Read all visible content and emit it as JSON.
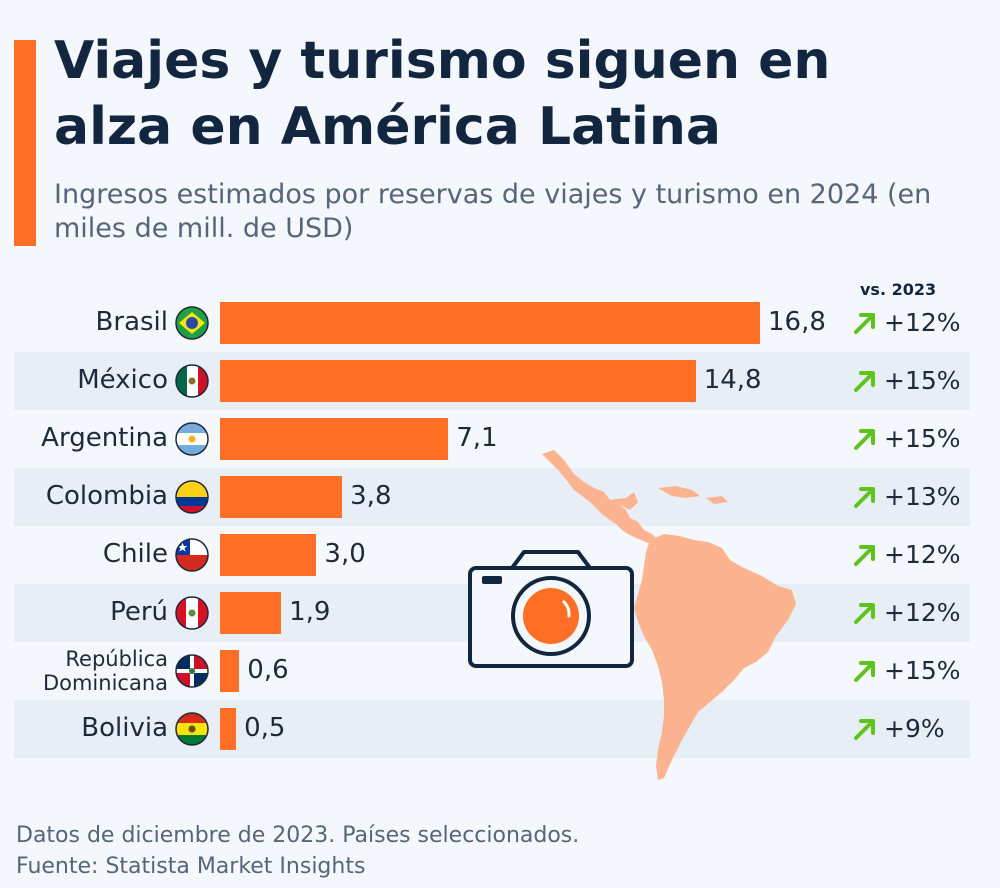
{
  "header": {
    "title": "Viajes y turismo siguen en alza en América Latina",
    "subtitle": "Ingresos estimados por reservas de viajes y turismo en 2024 (en miles de mill. de USD)"
  },
  "comparison_label": "vs. 2023",
  "colors": {
    "bar": "#ff6f26",
    "accent": "#ff6f26",
    "arrow": "#5fc31e",
    "title": "#12263f"
  },
  "chart_data": {
    "type": "bar",
    "orientation": "horizontal",
    "title": "Viajes y turismo siguen en alza en América Latina",
    "subtitle": "Ingresos estimados por reservas de viajes y turismo en 2024 (en miles de mill. de USD)",
    "xlim": [
      0,
      16.8
    ],
    "grid": false,
    "legend": "none",
    "categories": [
      "Brasil",
      "México",
      "Argentina",
      "Colombia",
      "Chile",
      "Perú",
      "República Dominicana",
      "Bolivia"
    ],
    "category_lines": [
      [
        "Brasil"
      ],
      [
        "México"
      ],
      [
        "Argentina"
      ],
      [
        "Colombia"
      ],
      [
        "Chile"
      ],
      [
        "Perú"
      ],
      [
        "República",
        "Dominicana"
      ],
      [
        "Bolivia"
      ]
    ],
    "values": [
      16.8,
      14.8,
      7.1,
      3.8,
      3.0,
      1.9,
      0.6,
      0.5
    ],
    "value_labels": [
      "16,8",
      "14,8",
      "7,1",
      "3,8",
      "3,0",
      "1,9",
      "0,6",
      "0,5"
    ],
    "change_vs_2023": [
      "+12%",
      "+15%",
      "+15%",
      "+13%",
      "+12%",
      "+12%",
      "+15%",
      "+9%"
    ],
    "flag_icons": [
      "brazil-flag-icon",
      "mexico-flag-icon",
      "argentina-flag-icon",
      "colombia-flag-icon",
      "chile-flag-icon",
      "peru-flag-icon",
      "dominican-republic-flag-icon",
      "bolivia-flag-icon"
    ]
  },
  "decorations": {
    "map": "latin-america-map-icon",
    "camera": "camera-icon",
    "arrow": "up-right-arrow-icon"
  },
  "footer": {
    "note": "Datos de diciembre de 2023. Países seleccionados.",
    "source": "Fuente: Statista Market Insights"
  }
}
